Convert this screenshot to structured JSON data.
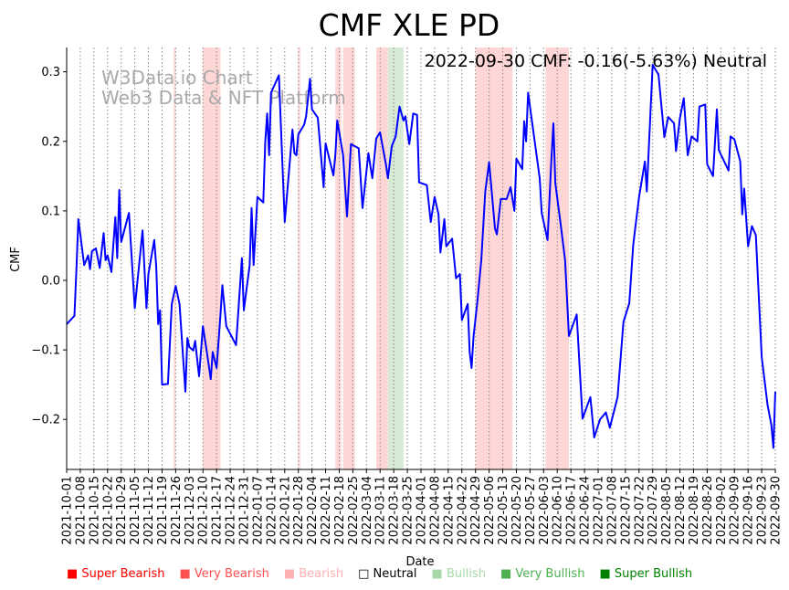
{
  "chart_data": {
    "type": "line",
    "title": "CMF XLE PD",
    "annotation": "2022-09-30 CMF: -0.16(-5.63%) Neutral",
    "watermark": [
      "W3Data.io Chart",
      "Web3 Data & NFT Platform"
    ],
    "xlabel": "Date",
    "ylabel": "CMF",
    "x_start": "2021-10-01",
    "x_unit": "days since 2021-10-01",
    "xlim": [
      0,
      364
    ],
    "ylim": [
      -0.272,
      0.335
    ],
    "yticks": [
      -0.2,
      -0.1,
      0.0,
      0.1,
      0.2,
      0.3
    ],
    "ytick_labels": [
      "−0.2",
      "−0.1",
      "0.0",
      "0.1",
      "0.2",
      "0.3"
    ],
    "xtick_labels": [
      "2021-10-01",
      "2021-10-08",
      "2021-10-15",
      "2021-10-22",
      "2021-10-29",
      "2021-11-05",
      "2021-11-12",
      "2021-11-19",
      "2021-11-26",
      "2021-12-03",
      "2021-12-10",
      "2021-12-17",
      "2021-12-24",
      "2021-12-31",
      "2022-01-07",
      "2022-01-14",
      "2022-01-21",
      "2022-01-28",
      "2022-02-04",
      "2022-02-11",
      "2022-02-18",
      "2022-02-25",
      "2022-03-04",
      "2022-03-11",
      "2022-03-18",
      "2022-03-25",
      "2022-04-01",
      "2022-04-08",
      "2022-04-15",
      "2022-04-22",
      "2022-04-29",
      "2022-05-06",
      "2022-05-13",
      "2022-05-20",
      "2022-05-27",
      "2022-06-03",
      "2022-06-10",
      "2022-06-17",
      "2022-06-24",
      "2022-07-01",
      "2022-07-08",
      "2022-07-15",
      "2022-07-22",
      "2022-07-29",
      "2022-08-05",
      "2022-08-12",
      "2022-08-19",
      "2022-08-26",
      "2022-09-02",
      "2022-09-09",
      "2022-09-16",
      "2022-09-23",
      "2022-09-30"
    ],
    "grid": "vertical dotted",
    "line_color": "#0000ff",
    "series": [
      {
        "name": "CMF",
        "x": [
          0,
          3,
          4,
          5,
          6,
          9,
          11,
          12,
          13,
          15,
          17,
          19,
          20,
          21,
          23,
          25,
          26,
          27,
          28,
          32,
          35,
          39,
          41,
          42,
          45,
          46,
          47,
          48,
          49,
          52,
          54,
          56,
          58,
          61,
          62,
          63,
          65,
          66,
          68,
          70,
          72,
          74,
          75,
          77,
          79,
          80,
          82,
          87,
          90,
          91,
          94,
          95,
          96,
          98,
          101,
          102,
          103,
          104,
          105,
          109,
          112,
          116,
          117,
          118,
          119,
          122,
          123,
          125,
          126,
          129,
          132,
          133,
          137,
          138,
          139,
          142,
          144,
          146,
          150,
          152,
          155,
          157,
          159,
          161,
          164,
          165,
          167,
          169,
          171,
          173,
          174,
          176,
          178,
          180,
          181,
          185,
          187,
          189,
          191,
          192,
          194,
          195,
          198,
          200,
          202,
          203,
          206,
          207,
          208,
          209,
          211,
          213,
          215,
          217,
          220,
          221,
          223,
          226,
          228,
          230,
          231,
          234,
          235,
          236,
          237,
          243,
          244,
          247,
          249,
          250,
          251,
          254,
          256,
          258,
          262,
          265,
          269,
          271,
          274,
          277,
          279,
          283,
          286,
          289,
          291,
          294,
          297,
          298,
          301,
          304,
          307,
          309,
          312,
          313,
          315,
          317,
          319,
          321,
          324,
          325,
          328,
          329,
          332,
          334,
          335,
          340,
          341,
          343,
          346,
          347,
          348,
          350,
          352,
          354,
          357,
          360,
          362,
          363,
          364
        ],
        "values": [
          -0.063,
          -0.054,
          -0.051,
          0.016,
          0.088,
          0.022,
          0.036,
          0.016,
          0.042,
          0.046,
          0.018,
          0.068,
          0.029,
          0.036,
          0.012,
          0.091,
          0.032,
          0.13,
          0.055,
          0.097,
          -0.04,
          0.072,
          -0.04,
          0.009,
          0.058,
          0.02,
          -0.063,
          -0.043,
          -0.15,
          -0.149,
          -0.034,
          -0.008,
          -0.034,
          -0.16,
          -0.083,
          -0.096,
          -0.101,
          -0.087,
          -0.138,
          -0.066,
          -0.103,
          -0.142,
          -0.103,
          -0.126,
          -0.05,
          -0.007,
          -0.066,
          -0.093,
          0.032,
          -0.043,
          0.022,
          0.104,
          0.022,
          0.12,
          0.112,
          0.2,
          0.24,
          0.18,
          0.27,
          0.295,
          0.084,
          0.217,
          0.183,
          0.18,
          0.21,
          0.224,
          0.236,
          0.29,
          0.246,
          0.234,
          0.134,
          0.197,
          0.151,
          0.18,
          0.23,
          0.18,
          0.092,
          0.196,
          0.19,
          0.104,
          0.183,
          0.147,
          0.204,
          0.213,
          0.167,
          0.147,
          0.193,
          0.207,
          0.25,
          0.23,
          0.236,
          0.196,
          0.24,
          0.238,
          0.141,
          0.137,
          0.084,
          0.12,
          0.095,
          0.04,
          0.088,
          0.049,
          0.06,
          0.003,
          0.009,
          -0.057,
          -0.034,
          -0.103,
          -0.126,
          -0.08,
          -0.03,
          0.03,
          0.128,
          0.17,
          0.075,
          0.066,
          0.117,
          0.117,
          0.134,
          0.1,
          0.175,
          0.16,
          0.229,
          0.2,
          0.27,
          0.147,
          0.097,
          0.058,
          0.174,
          0.226,
          0.14,
          0.075,
          0.029,
          -0.08,
          -0.049,
          -0.199,
          -0.168,
          -0.226,
          -0.2,
          -0.19,
          -0.212,
          -0.168,
          -0.06,
          -0.033,
          0.051,
          0.12,
          0.171,
          0.128,
          0.31,
          0.296,
          0.206,
          0.235,
          0.226,
          0.186,
          0.233,
          0.262,
          0.18,
          0.207,
          0.2,
          0.25,
          0.253,
          0.167,
          0.15,
          0.246,
          0.187,
          0.158,
          0.207,
          0.203,
          0.171,
          0.095,
          0.132,
          0.049,
          0.078,
          0.065,
          -0.11,
          -0.179,
          -0.208,
          -0.241,
          -0.16
        ]
      }
    ],
    "regions": [
      {
        "label": "Very Bearish",
        "from": 55,
        "to": 56
      },
      {
        "label": "Very Bearish",
        "from": 70,
        "to": 79
      },
      {
        "label": "Very Bearish",
        "from": 119,
        "to": 120
      },
      {
        "label": "Very Bearish",
        "from": 138,
        "to": 141
      },
      {
        "label": "Very Bearish",
        "from": 142,
        "to": 148
      },
      {
        "label": "Very Bearish",
        "from": 159,
        "to": 165
      },
      {
        "label": "Bullish",
        "from": 165,
        "to": 173
      },
      {
        "label": "Very Bearish",
        "from": 210,
        "to": 229
      },
      {
        "label": "Very Bearish",
        "from": 246,
        "to": 258
      }
    ],
    "legend_position": "bottom",
    "legend": [
      {
        "label": "Super Bearish",
        "color": "#ff0000",
        "marker": "■"
      },
      {
        "label": "Very Bearish",
        "color": "#ff5050",
        "marker": "■"
      },
      {
        "label": "Bearish",
        "color": "#ffb0b0",
        "marker": "■"
      },
      {
        "label": "Neutral",
        "color": "#000000",
        "marker": "□"
      },
      {
        "label": "Bullish",
        "color": "#a8d8a8",
        "marker": "■"
      },
      {
        "label": "Very Bullish",
        "color": "#4caf50",
        "marker": "■"
      },
      {
        "label": "Super Bullish",
        "color": "#008000",
        "marker": "■"
      }
    ]
  }
}
